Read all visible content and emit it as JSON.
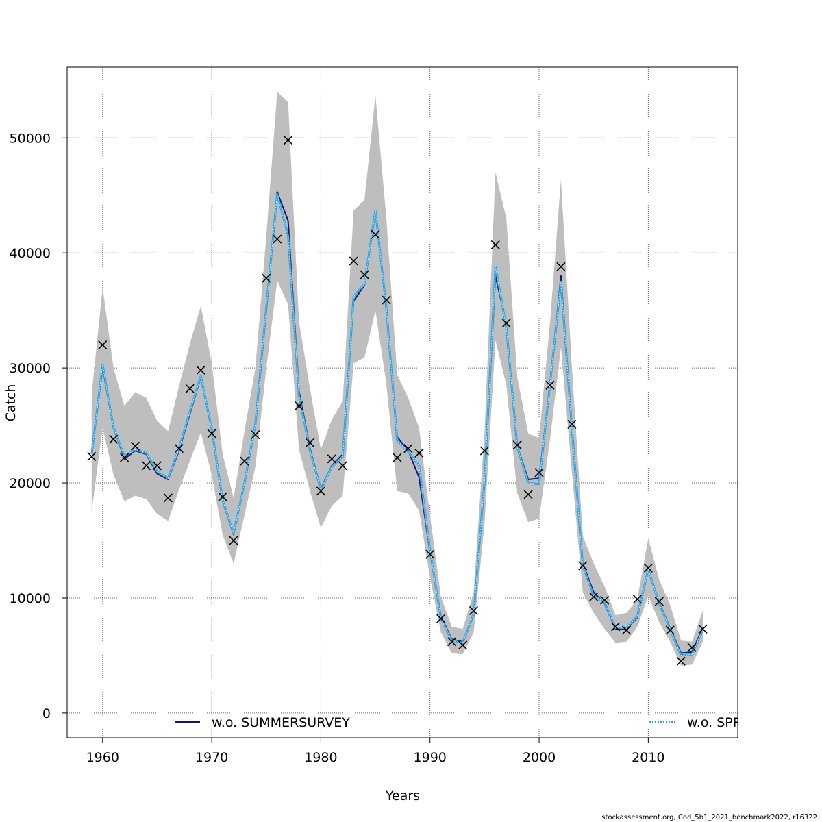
{
  "chart_data": {
    "type": "line",
    "xlabel": "Years",
    "ylabel": "Catch",
    "xlim": [
      1956.75,
      2018.2
    ],
    "ylim": [
      -2150,
      56150
    ],
    "x_ticks": [
      1960,
      1970,
      1980,
      1990,
      2000,
      2010
    ],
    "y_ticks": [
      0,
      10000,
      20000,
      30000,
      40000,
      50000
    ],
    "x_tick_labels": [
      "1960",
      "1970",
      "1980",
      "1990",
      "2000",
      "2010"
    ],
    "y_tick_labels": [
      "0",
      "10000",
      "20000",
      "30000",
      "40000",
      "50000"
    ],
    "grid": true,
    "legend_position": "bottom",
    "x": [
      1959,
      1960,
      1961,
      1962,
      1963,
      1964,
      1965,
      1966,
      1967,
      1968,
      1969,
      1970,
      1971,
      1972,
      1973,
      1974,
      1975,
      1976,
      1977,
      1978,
      1979,
      1980,
      1981,
      1982,
      1983,
      1984,
      1985,
      1986,
      1987,
      1988,
      1989,
      1990,
      1991,
      1992,
      1993,
      1994,
      1995,
      1996,
      1997,
      1998,
      1999,
      2000,
      2001,
      2002,
      2003,
      2004,
      2005,
      2006,
      2007,
      2008,
      2009,
      2010,
      2011,
      2012,
      2013,
      2014,
      2015
    ],
    "series": [
      {
        "name": "w.o. SUMMERSURVEY",
        "color": "#1a1466",
        "style": "solid",
        "values": [
          22500,
          30000,
          24800,
          22100,
          22800,
          22500,
          20800,
          20300,
          22800,
          26000,
          29200,
          24600,
          18400,
          15500,
          20000,
          25000,
          35000,
          45300,
          42800,
          28000,
          23000,
          19500,
          21500,
          22500,
          35800,
          37200,
          43700,
          35000,
          24000,
          22800,
          20500,
          14000,
          8400,
          6400,
          6200,
          8500,
          20000,
          38000,
          33800,
          23200,
          20300,
          20400,
          28500,
          38000,
          25000,
          13000,
          10500,
          9500,
          7300,
          7300,
          8300,
          12500,
          9600,
          7400,
          5200,
          5300,
          7400
        ]
      },
      {
        "name": "w.o. SPRINGSURVEY",
        "color": "#29a3e6",
        "style": "dashed",
        "values": [
          22500,
          30300,
          24800,
          22300,
          22900,
          22600,
          21000,
          20400,
          23000,
          26200,
          29300,
          24700,
          18500,
          15600,
          20000,
          25100,
          35300,
          45100,
          41500,
          27600,
          22800,
          19400,
          21400,
          22300,
          36200,
          37300,
          43700,
          35200,
          23700,
          22700,
          21500,
          14200,
          8200,
          6300,
          6100,
          8600,
          20200,
          38800,
          33500,
          23100,
          20000,
          19900,
          28600,
          37500,
          24800,
          12800,
          10200,
          9600,
          7400,
          7400,
          8400,
          12500,
          9500,
          7300,
          5000,
          5100,
          7200
        ]
      }
    ],
    "band": {
      "color": "#bebebe",
      "lower": [
        17500,
        24800,
        20700,
        18400,
        18900,
        18600,
        17300,
        16700,
        19400,
        21900,
        24400,
        20700,
        15500,
        13000,
        17200,
        21400,
        30000,
        37600,
        35500,
        22900,
        19300,
        16100,
        18000,
        18900,
        30400,
        30900,
        35000,
        28600,
        19300,
        19100,
        17600,
        11800,
        7000,
        5200,
        5100,
        7000,
        16500,
        32400,
        28500,
        19100,
        16600,
        16900,
        23800,
        31800,
        21000,
        10500,
        8700,
        7300,
        6100,
        6200,
        7500,
        10200,
        7900,
        6200,
        4100,
        4200,
        6200
      ],
      "upper": [
        27700,
        37000,
        30000,
        26700,
        27900,
        27400,
        25400,
        24500,
        28400,
        32100,
        35400,
        30400,
        22500,
        18700,
        24500,
        30000,
        41500,
        54000,
        53100,
        34000,
        28200,
        22900,
        25500,
        27100,
        43700,
        44600,
        53700,
        43000,
        29400,
        27400,
        24800,
        17200,
        10100,
        7500,
        7300,
        10500,
        24500,
        47000,
        43000,
        29200,
        24300,
        23900,
        34000,
        46400,
        30200,
        15400,
        13000,
        11000,
        8500,
        8700,
        9900,
        15200,
        11600,
        9400,
        6300,
        6200,
        8900
      ]
    },
    "observations": {
      "marker": "x",
      "color": "#000000",
      "values": [
        22300,
        32000,
        23800,
        22200,
        23200,
        21500,
        21500,
        18700,
        23000,
        28200,
        29800,
        24300,
        18800,
        15000,
        21900,
        24200,
        37800,
        41200,
        49800,
        26700,
        23500,
        19300,
        22100,
        21500,
        39300,
        38100,
        41600,
        35900,
        22200,
        23000,
        22600,
        13800,
        8200,
        6200,
        5900,
        8900,
        22800,
        40700,
        33900,
        23300,
        19000,
        20900,
        28500,
        38800,
        25100,
        12800,
        10100,
        9800,
        7500,
        7200,
        9900,
        12600,
        9700,
        7200,
        4500,
        5700,
        7300
      ]
    }
  },
  "footer": "stockassessment.org, Cod_5b1_2021_benchmark2022, r16322"
}
